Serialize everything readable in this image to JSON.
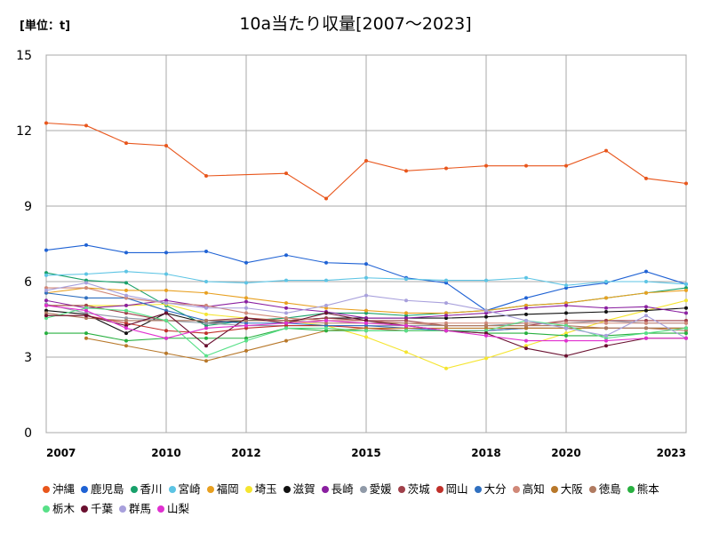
{
  "unit_label": "[単位：t]",
  "chart_data": {
    "type": "line",
    "title": "10a当たり収量[2007～2023]",
    "ylim": [
      0,
      15
    ],
    "yticks": [
      0,
      3,
      6,
      9,
      12,
      15
    ],
    "xlim": [
      2007,
      2023
    ],
    "xticks": [
      "2007",
      "2010",
      "2012",
      "2015",
      "2018",
      "2020",
      "2023"
    ],
    "grid": true,
    "legend_position": "bottom",
    "x": [
      2007,
      2008,
      2009,
      2010,
      2011,
      2012,
      2013,
      2014,
      2015,
      2016,
      2017,
      2018,
      2019,
      2020,
      2021,
      2022,
      2023
    ],
    "series": [
      {
        "name": "沖縄",
        "color": "#e8561c",
        "values": [
          12.3,
          12.2,
          11.5,
          11.4,
          10.2,
          null,
          10.3,
          9.3,
          10.8,
          10.4,
          10.5,
          10.6,
          10.6,
          10.6,
          11.2,
          10.1,
          9.9
        ]
      },
      {
        "name": "鹿児島",
        "color": "#1f62d4",
        "values": [
          7.25,
          7.45,
          7.15,
          7.15,
          7.2,
          6.75,
          7.05,
          6.75,
          6.7,
          6.15,
          5.95,
          4.85,
          5.35,
          5.75,
          5.95,
          6.4,
          5.9
        ]
      },
      {
        "name": "香川",
        "color": "#18a06a",
        "values": [
          6.35,
          6.05,
          5.95,
          5.05,
          4.25,
          4.45,
          4.55,
          4.75,
          4.75,
          4.65,
          4.75,
          4.85,
          5.05,
          5.15,
          5.35,
          5.55,
          5.75
        ]
      },
      {
        "name": "宮崎",
        "color": "#5cc4e4",
        "values": [
          6.25,
          6.3,
          6.4,
          6.3,
          6.0,
          5.95,
          6.05,
          6.05,
          6.15,
          6.1,
          6.05,
          6.05,
          6.15,
          5.85,
          6.0,
          6.0,
          5.9
        ]
      },
      {
        "name": "福岡",
        "color": "#e8a020",
        "values": [
          5.55,
          5.75,
          5.65,
          5.65,
          5.55,
          5.35,
          5.15,
          4.95,
          4.85,
          4.75,
          4.75,
          4.85,
          5.05,
          5.15,
          5.35,
          5.55,
          5.65
        ]
      },
      {
        "name": "埼玉",
        "color": "#f5e530",
        "values": [
          5.05,
          5.05,
          5.05,
          5.1,
          4.7,
          4.55,
          4.45,
          4.25,
          3.8,
          3.2,
          2.55,
          2.95,
          3.45,
          3.95,
          4.45,
          4.85,
          5.25
        ]
      },
      {
        "name": "滋賀",
        "color": "#111111",
        "values": [
          4.85,
          4.7,
          3.95,
          4.75,
          4.35,
          4.45,
          4.45,
          4.55,
          4.55,
          4.55,
          4.55,
          4.6,
          4.7,
          4.75,
          4.8,
          4.85,
          4.95
        ]
      },
      {
        "name": "長崎",
        "color": "#8a1fa0",
        "values": [
          5.25,
          4.95,
          5.05,
          5.25,
          5.0,
          5.2,
          4.95,
          4.8,
          4.55,
          4.55,
          4.65,
          4.75,
          4.95,
          5.05,
          4.95,
          5.0,
          4.75
        ]
      },
      {
        "name": "愛媛",
        "color": "#909aa8",
        "values": [
          5.1,
          4.75,
          4.55,
          4.45,
          4.35,
          4.25,
          4.25,
          4.25,
          4.25,
          4.25,
          4.25,
          4.25,
          4.35,
          4.35,
          4.45,
          4.35,
          4.35
        ]
      },
      {
        "name": "茨城",
        "color": "#a0404a",
        "values": [
          5.05,
          5.05,
          4.75,
          4.45,
          4.45,
          4.55,
          4.45,
          4.55,
          4.45,
          4.45,
          4.25,
          4.25,
          4.25,
          4.45,
          4.45,
          4.45,
          4.45
        ]
      },
      {
        "name": "岡山",
        "color": "#c0302a",
        "values": [
          4.65,
          4.65,
          4.35,
          4.05,
          3.95,
          4.15,
          4.25,
          4.25,
          4.15,
          4.05,
          4.05,
          4.05,
          4.15,
          4.15,
          4.15,
          4.15,
          4.15
        ]
      },
      {
        "name": "大分",
        "color": "#3070c0",
        "values": [
          5.55,
          5.35,
          5.35,
          4.85,
          4.45,
          4.35,
          4.35,
          4.25,
          4.25,
          4.15,
          4.05,
          4.05,
          4.15,
          4.15,
          4.15,
          4.15,
          4.15
        ]
      },
      {
        "name": "高知",
        "color": "#d08878",
        "values": [
          5.75,
          5.75,
          5.35,
          5.15,
          5.05,
          4.75,
          4.55,
          4.45,
          4.45,
          4.35,
          4.35,
          4.35,
          4.35,
          4.35,
          4.35,
          4.35,
          4.35
        ]
      },
      {
        "name": "大阪",
        "color": "#b8782a",
        "values": [
          null,
          3.75,
          3.45,
          3.15,
          2.85,
          3.25,
          3.65,
          4.05,
          4.15,
          4.15,
          4.15,
          4.15,
          4.15,
          4.15,
          4.15,
          4.15,
          4.15
        ]
      },
      {
        "name": "徳島",
        "color": "#b07a60",
        "values": [
          4.75,
          4.55,
          4.45,
          4.45,
          4.45,
          4.45,
          4.45,
          4.35,
          4.35,
          4.35,
          4.25,
          4.25,
          4.25,
          4.25,
          4.15,
          4.15,
          4.05
        ]
      },
      {
        "name": "熊本",
        "color": "#28b040",
        "values": [
          3.95,
          3.95,
          3.65,
          3.75,
          3.75,
          3.75,
          4.15,
          4.05,
          4.05,
          4.05,
          4.05,
          3.95,
          3.95,
          3.85,
          3.85,
          3.95,
          3.95
        ]
      },
      {
        "name": "栃木",
        "color": "#58e088",
        "values": [
          4.55,
          4.95,
          4.85,
          4.45,
          3.05,
          3.65,
          4.15,
          4.15,
          4.05,
          4.05,
          4.05,
          4.05,
          4.45,
          4.25,
          3.75,
          3.95,
          4.15
        ]
      },
      {
        "name": "千葉",
        "color": "#6a1030",
        "values": [
          4.65,
          4.65,
          4.25,
          4.75,
          3.45,
          4.55,
          4.35,
          4.75,
          4.45,
          4.25,
          4.05,
          3.95,
          3.35,
          3.05,
          3.45,
          3.75,
          3.75
        ]
      },
      {
        "name": "群馬",
        "color": "#a8a0dc",
        "values": [
          5.65,
          5.95,
          5.45,
          5.15,
          4.95,
          4.95,
          4.75,
          5.05,
          5.45,
          5.25,
          5.15,
          4.85,
          4.45,
          4.15,
          3.85,
          4.65,
          3.75
        ]
      },
      {
        "name": "山梨",
        "color": "#e030d0",
        "values": [
          5.05,
          4.85,
          4.15,
          3.75,
          4.15,
          4.25,
          4.35,
          4.45,
          4.35,
          4.25,
          4.05,
          3.85,
          3.65,
          3.65,
          3.65,
          3.75,
          3.75
        ]
      }
    ]
  }
}
